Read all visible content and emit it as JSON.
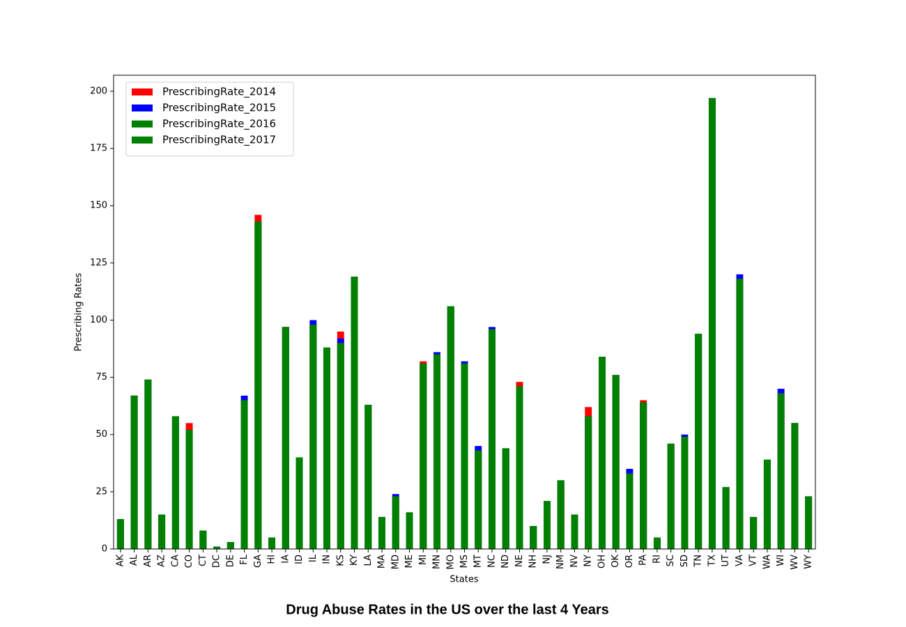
{
  "chart_data": {
    "type": "bar",
    "overlap": true,
    "title": "Drug Abuse Rates in the US over the last 4 Years",
    "x_label": "States",
    "y_label": "Prescribing Rates",
    "categories": [
      "AK",
      "AL",
      "AR",
      "AZ",
      "CA",
      "CO",
      "CT",
      "DC",
      "DE",
      "FL",
      "GA",
      "HI",
      "IA",
      "ID",
      "IL",
      "IN",
      "KS",
      "KY",
      "LA",
      "MA",
      "MD",
      "ME",
      "MI",
      "MN",
      "MO",
      "MS",
      "MT",
      "NC",
      "ND",
      "NE",
      "NH",
      "NJ",
      "NM",
      "NV",
      "NY",
      "OH",
      "OK",
      "OR",
      "PA",
      "RI",
      "SC",
      "SD",
      "TN",
      "TX",
      "UT",
      "VA",
      "VT",
      "WA",
      "WI",
      "WV",
      "WY"
    ],
    "series": [
      {
        "name": "PrescribingRate_2014",
        "color": "#ff0000",
        "values": [
          13,
          67,
          74,
          15,
          58,
          55,
          8,
          1,
          3,
          65,
          146,
          5,
          97,
          40,
          98,
          88,
          95,
          119,
          63,
          14,
          23,
          16,
          82,
          85,
          106,
          81,
          43,
          96,
          44,
          73,
          10,
          21,
          30,
          15,
          62,
          84,
          76,
          33,
          65,
          5,
          46,
          49,
          94,
          197,
          27,
          118,
          14,
          39,
          68,
          55,
          23
        ]
      },
      {
        "name": "PrescribingRate_2015",
        "color": "#0000ff",
        "values": [
          13,
          67,
          74,
          15,
          58,
          52,
          8,
          1,
          3,
          67,
          143,
          5,
          97,
          40,
          100,
          88,
          92,
          119,
          63,
          14,
          24,
          16,
          81,
          86,
          106,
          82,
          45,
          97,
          44,
          71,
          10,
          21,
          30,
          15,
          58,
          84,
          76,
          35,
          64,
          5,
          46,
          50,
          94,
          197,
          27,
          120,
          14,
          39,
          70,
          55,
          23
        ]
      },
      {
        "name": "PrescribingRate_2016",
        "color": "#008000",
        "values": [
          13,
          67,
          74,
          15,
          58,
          52,
          8,
          1,
          3,
          65,
          143,
          5,
          97,
          40,
          98,
          88,
          90,
          119,
          63,
          14,
          23,
          16,
          81,
          85,
          106,
          81,
          43,
          96,
          44,
          71,
          10,
          21,
          30,
          15,
          58,
          84,
          76,
          33,
          64,
          5,
          46,
          49,
          94,
          197,
          27,
          118,
          14,
          39,
          68,
          55,
          23
        ]
      },
      {
        "name": "PrescribingRate_2017",
        "color": "#008000",
        "values": [
          13,
          67,
          74,
          15,
          58,
          52,
          8,
          1,
          3,
          65,
          143,
          5,
          97,
          40,
          98,
          88,
          90,
          119,
          63,
          14,
          23,
          16,
          81,
          85,
          106,
          81,
          43,
          96,
          44,
          71,
          10,
          21,
          30,
          15,
          58,
          84,
          76,
          33,
          64,
          5,
          46,
          49,
          94,
          197,
          27,
          118,
          14,
          39,
          68,
          55,
          23
        ]
      }
    ],
    "ylim": [
      0,
      207
    ],
    "yticks": [
      0,
      25,
      50,
      75,
      100,
      125,
      150,
      175,
      200
    ],
    "legend": "upper left",
    "grid": false
  }
}
